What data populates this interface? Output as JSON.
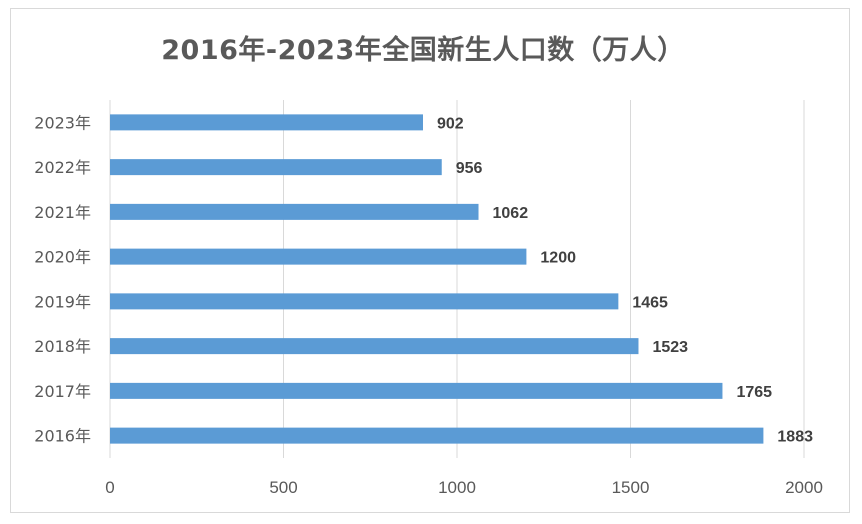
{
  "chart_data": {
    "type": "bar",
    "orientation": "horizontal",
    "title": "2016年-2023年全国新生人口数（万人）",
    "categories": [
      "2023年",
      "2022年",
      "2021年",
      "2020年",
      "2019年",
      "2018年",
      "2017年",
      "2016年"
    ],
    "values": [
      902,
      956,
      1062,
      1200,
      1465,
      1523,
      1765,
      1883
    ],
    "xlim": [
      0,
      2000
    ],
    "xticks": [
      "0",
      "500",
      "1000",
      "1500",
      "2000"
    ],
    "data_labels": [
      "902",
      "956",
      "1062",
      "1200",
      "1465",
      "1523",
      "1765",
      "1883"
    ],
    "bar_color": "#5b9bd5",
    "grid": true
  }
}
